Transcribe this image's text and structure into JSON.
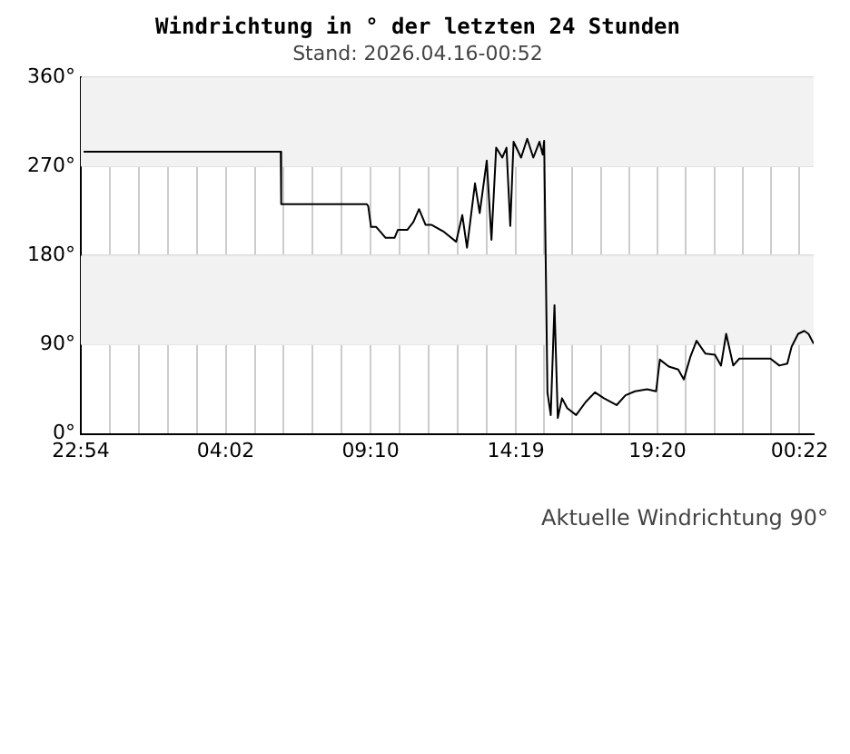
{
  "chart_data": {
    "type": "line",
    "title": "Windrichtung in ° der letzten 24 Stunden",
    "subtitle": "Stand: 2026.04.16-00:52",
    "x": [
      "2026-04-14T23:00",
      "2026-04-15T05:59",
      "2026-04-15T06:00",
      "2026-04-15T09:02",
      "2026-04-15T09:05",
      "2026-04-15T09:11",
      "2026-04-15T09:22",
      "2026-04-15T09:42",
      "2026-04-15T10:01",
      "2026-04-15T10:08",
      "2026-04-15T10:28",
      "2026-04-15T10:41",
      "2026-04-15T10:53",
      "2026-04-15T11:07",
      "2026-04-15T11:20",
      "2026-04-15T11:46",
      "2026-04-15T12:12",
      "2026-04-15T12:25",
      "2026-04-15T12:35",
      "2026-04-15T12:52",
      "2026-04-15T13:02",
      "2026-04-15T13:17",
      "2026-04-15T13:27",
      "2026-04-15T13:37",
      "2026-04-15T13:50",
      "2026-04-15T13:59",
      "2026-04-15T14:07",
      "2026-04-15T14:14",
      "2026-04-15T14:30",
      "2026-04-15T14:43",
      "2026-04-15T14:56",
      "2026-04-15T15:09",
      "2026-04-15T15:16",
      "2026-04-15T15:19",
      "2026-04-15T15:26",
      "2026-04-15T15:33",
      "2026-04-15T15:41",
      "2026-04-15T15:48",
      "2026-04-15T15:57",
      "2026-04-15T16:08",
      "2026-04-15T16:27",
      "2026-04-15T16:47",
      "2026-04-15T17:07",
      "2026-04-15T17:26",
      "2026-04-15T17:53",
      "2026-04-15T18:12",
      "2026-04-15T18:32",
      "2026-04-15T18:58",
      "2026-04-15T19:17",
      "2026-04-15T19:25",
      "2026-04-15T19:44",
      "2026-04-15T20:04",
      "2026-04-15T20:16",
      "2026-04-15T20:30",
      "2026-04-15T20:43",
      "2026-04-15T21:02",
      "2026-04-15T21:22",
      "2026-04-15T21:35",
      "2026-04-15T21:46",
      "2026-04-15T22:01",
      "2026-04-15T22:14",
      "2026-04-15T23:20",
      "2026-04-15T23:39",
      "2026-04-15T23:56",
      "2026-04-16T00:05",
      "2026-04-16T00:19",
      "2026-04-16T00:32",
      "2026-04-16T00:41",
      "2026-04-16T00:52"
    ],
    "series": [
      {
        "color": "#000000",
        "values": [
          285,
          285,
          232,
          232,
          230,
          209,
          209,
          198,
          198,
          206,
          206,
          214,
          227,
          211,
          211,
          204,
          194,
          221,
          188,
          253,
          223,
          276,
          196,
          289,
          279,
          289,
          210,
          295,
          279,
          298,
          279,
          295,
          282,
          296,
          42,
          19,
          130,
          16,
          36,
          26,
          19,
          32,
          42,
          36,
          29,
          39,
          43,
          45,
          43,
          75,
          68,
          65,
          55,
          78,
          94,
          81,
          80,
          69,
          101,
          69,
          76,
          76,
          69,
          71,
          88,
          101,
          104,
          101,
          91
        ]
      }
    ],
    "xlim": [
      "2026-04-14T22:54",
      "2026-04-16T00:52"
    ],
    "xticks": [
      {
        "value": "2026-04-14T22:54",
        "label": "22:54"
      },
      {
        "value": "2026-04-14T23:56",
        "label": null
      },
      {
        "value": "2026-04-15T00:57",
        "label": null
      },
      {
        "value": "2026-04-15T01:59",
        "label": null
      },
      {
        "value": "2026-04-15T03:01",
        "label": null
      },
      {
        "value": "2026-04-15T04:02",
        "label": "04:02"
      },
      {
        "value": "2026-04-15T05:04",
        "label": null
      },
      {
        "value": "2026-04-15T06:05",
        "label": null
      },
      {
        "value": "2026-04-15T07:07",
        "label": null
      },
      {
        "value": "2026-04-15T08:08",
        "label": null
      },
      {
        "value": "2026-04-15T09:10",
        "label": "09:10"
      },
      {
        "value": "2026-04-15T10:12",
        "label": null
      },
      {
        "value": "2026-04-15T11:14",
        "label": null
      },
      {
        "value": "2026-04-15T12:16",
        "label": null
      },
      {
        "value": "2026-04-15T13:17",
        "label": null
      },
      {
        "value": "2026-04-15T14:19",
        "label": "14:19"
      },
      {
        "value": "2026-04-15T15:19",
        "label": null
      },
      {
        "value": "2026-04-15T16:19",
        "label": null
      },
      {
        "value": "2026-04-15T17:20",
        "label": null
      },
      {
        "value": "2026-04-15T18:20",
        "label": null
      },
      {
        "value": "2026-04-15T19:20",
        "label": "19:20"
      },
      {
        "value": "2026-04-15T20:20",
        "label": null
      },
      {
        "value": "2026-04-15T21:21",
        "label": null
      },
      {
        "value": "2026-04-15T22:21",
        "label": null
      },
      {
        "value": "2026-04-15T23:22",
        "label": null
      },
      {
        "value": "2026-04-16T00:22",
        "label": "00:22"
      }
    ],
    "ylim": [
      0,
      360
    ],
    "yticks": [
      {
        "value": 0,
        "label": "0°"
      },
      {
        "value": 90,
        "label": "90°"
      },
      {
        "value": 180,
        "label": "180°"
      },
      {
        "value": 270,
        "label": "270°"
      },
      {
        "value": 360,
        "label": "360°"
      }
    ],
    "bands": [
      {
        "axis": "y",
        "from": 90,
        "to": 180,
        "color": "#f2f2f2"
      },
      {
        "axis": "y",
        "from": 270,
        "to": 360,
        "color": "#f2f2f2"
      }
    ],
    "grid": true,
    "legend": false,
    "marker": "none",
    "line_style": "solid",
    "annotations": [
      "Aktuelle Windrichtung 90°"
    ]
  }
}
